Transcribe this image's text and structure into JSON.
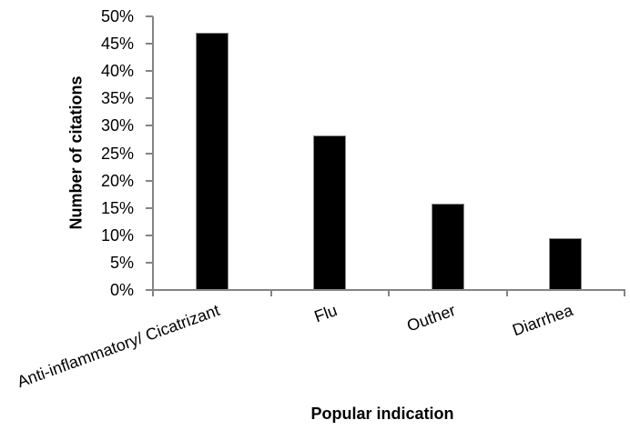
{
  "chart_data": {
    "type": "bar",
    "categories": [
      "Anti-inflammatory/ Cicatrizant",
      "Flu",
      "Outher",
      "Diarrhea"
    ],
    "values": [
      47,
      28.2,
      15.8,
      9.5
    ],
    "xlabel": "Popular indication",
    "ylabel": "Number of citations",
    "ylim": [
      0,
      50
    ],
    "ytick_step": 5,
    "ytick_labels": [
      "0%",
      "5%",
      "10%",
      "15%",
      "20%",
      "25%",
      "30%",
      "35%",
      "40%",
      "45%",
      "50%"
    ],
    "bar_color": "#000000",
    "axis_color": "#848484",
    "text_color": "#000000",
    "grid": false,
    "legend": false
  }
}
